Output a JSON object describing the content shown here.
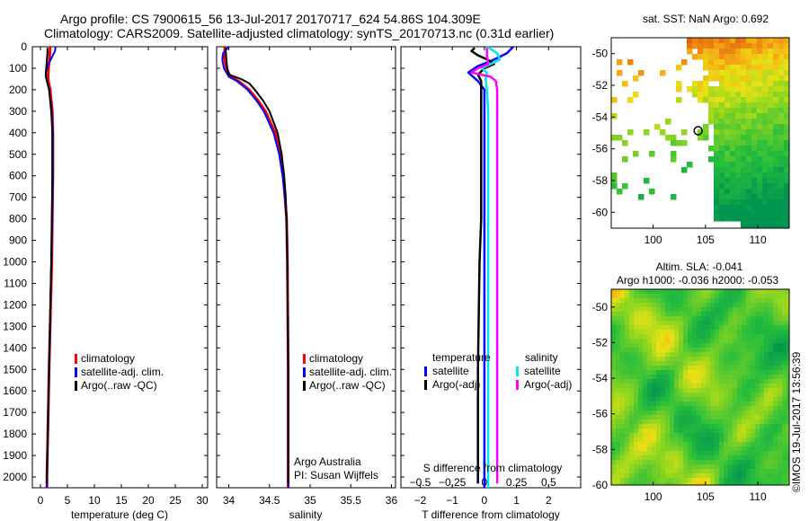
{
  "header": {
    "line1": "Argo profile: CS 7900615_56 13-Jul-2017 20170717_624 54.86S 104.309E",
    "line2": "Climatology: CARS2009. Satellite-adjusted climatology: synTS_20170713.nc (0.31d earlier)"
  },
  "depth_ticks": [
    0,
    100,
    200,
    300,
    400,
    500,
    600,
    700,
    800,
    900,
    1000,
    1100,
    1200,
    1300,
    1400,
    1500,
    1600,
    1700,
    1800,
    1900,
    2000
  ],
  "colors": {
    "climatology": "#ff0000",
    "satellite": "#0000ff",
    "argo": "#000000",
    "sal_satellite": "#00e5ee",
    "sal_argo": "#ff00ff",
    "land": "#000080"
  },
  "chart_data": [
    {
      "id": "temperature",
      "type": "line",
      "xlabel": "temperature (deg C)",
      "xlim": [
        -1.5,
        31
      ],
      "ylim": [
        2050,
        0
      ],
      "xticks": [
        0,
        5,
        10,
        15,
        20,
        25,
        30
      ],
      "xtick_labels": [
        "0",
        "5",
        "10",
        "15",
        "20",
        "25",
        "30"
      ],
      "legend": [
        "climatology",
        "satellite-adj. clim.",
        "Argo(..raw -QC)"
      ],
      "series": [
        {
          "name": "climatology",
          "depth": [
            0,
            50,
            100,
            150,
            200,
            300,
            400,
            600,
            800,
            1000,
            1500,
            2000,
            2050
          ],
          "values": [
            1.8,
            1.7,
            1.5,
            1.4,
            1.8,
            2.2,
            2.3,
            2.3,
            2.2,
            2.1,
            1.6,
            1.2,
            1.2
          ]
        },
        {
          "name": "satellite-adj. clim.",
          "depth": [
            0,
            20,
            40,
            60,
            80,
            100,
            120,
            150,
            200,
            300,
            400,
            600,
            800,
            1000,
            1500,
            2000,
            2050
          ],
          "values": [
            2.8,
            2.7,
            2.3,
            1.9,
            1.5,
            1.2,
            1.0,
            1.1,
            1.6,
            2.1,
            2.3,
            2.3,
            2.2,
            2.0,
            1.6,
            1.2,
            1.2
          ]
        },
        {
          "name": "Argo(..raw -QC)",
          "depth": [
            5,
            30,
            60,
            90,
            120,
            140,
            160,
            200,
            300,
            400,
            600,
            800,
            1000,
            1500,
            2000,
            2030
          ],
          "values": [
            1.3,
            1.3,
            1.2,
            1.1,
            1.0,
            1.0,
            1.2,
            1.6,
            2.0,
            2.2,
            2.2,
            2.1,
            2.0,
            1.6,
            1.2,
            1.2
          ]
        }
      ]
    },
    {
      "id": "salinity",
      "type": "line",
      "xlabel": "salinity",
      "xlim": [
        33.85,
        36.05
      ],
      "ylim": [
        2050,
        0
      ],
      "xticks": [
        34,
        34.5,
        35,
        35.5,
        36
      ],
      "xtick_labels": [
        "34",
        "34.5",
        "35",
        "35.5",
        "36"
      ],
      "legend": [
        "climatology",
        "satellite-adj. clim.",
        "Argo(..raw -QC)"
      ],
      "annotation": [
        "Argo Australia",
        "PI: Susan Wijffels"
      ],
      "series": [
        {
          "name": "climatology",
          "depth": [
            0,
            60,
            100,
            140,
            160,
            200,
            250,
            300,
            400,
            500,
            600,
            700,
            800,
            1000,
            1500,
            2000,
            2050
          ],
          "values": [
            33.95,
            33.95,
            33.97,
            34.02,
            34.12,
            34.25,
            34.36,
            34.45,
            34.57,
            34.63,
            34.67,
            34.69,
            34.71,
            34.72,
            34.73,
            34.73,
            34.73
          ]
        },
        {
          "name": "satellite-adj. clim.",
          "depth": [
            0,
            30,
            60,
            100,
            140,
            160,
            200,
            250,
            300,
            400,
            500,
            600,
            700,
            800,
            1000,
            1500,
            2000,
            2050
          ],
          "values": [
            34.0,
            33.93,
            33.92,
            33.94,
            34.0,
            34.1,
            34.23,
            34.34,
            34.43,
            34.55,
            34.62,
            34.66,
            34.69,
            34.71,
            34.72,
            34.73,
            34.73,
            34.73
          ]
        },
        {
          "name": "Argo(..raw -QC)",
          "depth": [
            5,
            60,
            100,
            130,
            150,
            170,
            200,
            250,
            300,
            400,
            500,
            600,
            700,
            800,
            1000,
            1500,
            2000,
            2030
          ],
          "values": [
            33.96,
            33.97,
            33.98,
            34.0,
            34.15,
            34.25,
            34.32,
            34.42,
            34.5,
            34.6,
            34.65,
            34.68,
            34.7,
            34.71,
            34.72,
            34.73,
            34.73,
            34.73
          ]
        }
      ]
    },
    {
      "id": "difference",
      "type": "line",
      "xlabel": "T difference from climatology",
      "top_label": "S difference from climatology",
      "xlim": [
        -2.6,
        3.0
      ],
      "s_xlim": [
        -0.65,
        0.75
      ],
      "ylim": [
        2050,
        0
      ],
      "xticks": [
        -2,
        -1,
        0,
        1,
        2
      ],
      "xtick_labels": [
        "−2",
        "−1",
        "0",
        "1",
        "2"
      ],
      "s_ticks": [
        -0.5,
        -0.25,
        0,
        0.25,
        0.5
      ],
      "s_tick_labels": [
        "−0.5",
        "−0.25",
        "0",
        "0.25",
        "0.5"
      ],
      "legend": {
        "temperature_title": "temperature",
        "salinity_title": "salinity",
        "entries": [
          "satellite",
          "Argo(-adj)",
          "satellite",
          "Argo(-adj)"
        ]
      },
      "series": [
        {
          "name": "temperature satellite",
          "depth": [
            0,
            30,
            60,
            90,
            120,
            160,
            200,
            300,
            500,
            800,
            1000,
            1500,
            2000,
            2050
          ],
          "values": [
            0.9,
            0.7,
            0.3,
            -0.2,
            -0.5,
            -0.2,
            0.0,
            0.0,
            0.0,
            0.0,
            0.0,
            0.0,
            0.0,
            0.0
          ]
        },
        {
          "name": "temperature Argo(-adj)",
          "depth": [
            5,
            20,
            40,
            60,
            80,
            100,
            130,
            160,
            200,
            300,
            500,
            800,
            1000,
            1500,
            2000,
            2030
          ],
          "values": [
            -0.3,
            -0.4,
            -0.2,
            0.1,
            0.3,
            0.0,
            -0.2,
            -0.1,
            -0.1,
            -0.1,
            -0.1,
            -0.1,
            -0.15,
            -0.2,
            -0.2,
            -0.2
          ]
        },
        {
          "name": "salinity satellite",
          "depth": [
            0,
            30,
            60,
            80,
            100,
            120,
            150,
            200,
            300,
            500,
            800,
            1000,
            1500,
            2000,
            2050
          ],
          "values": [
            0.02,
            0.1,
            0.12,
            0.05,
            -0.02,
            0.02,
            0.01,
            0.02,
            0.03,
            0.03,
            0.03,
            0.03,
            0.03,
            0.03,
            0.03
          ]
        },
        {
          "name": "salinity Argo(-adj)",
          "depth": [
            5,
            40,
            80,
            100,
            120,
            140,
            160,
            200,
            300,
            500,
            800,
            1000,
            1500,
            2000,
            2030
          ],
          "values": [
            0.02,
            0.02,
            0.03,
            -0.05,
            -0.1,
            0.05,
            0.09,
            0.1,
            0.1,
            0.1,
            0.1,
            0.1,
            0.1,
            0.1,
            0.1
          ]
        }
      ]
    },
    {
      "id": "sst-map",
      "type": "heatmap",
      "title": "sat. SST: NaN Argo: 0.692",
      "lon_range": [
        96,
        113
      ],
      "lat_range": [
        -61,
        -49
      ],
      "xticks": [
        100,
        105,
        110
      ],
      "xtick_labels": [
        "100",
        "105",
        "110"
      ],
      "yticks": [
        -50,
        -52,
        -54,
        -56,
        -58,
        -60
      ],
      "ytick_labels": [
        "-50",
        "-52",
        "-54",
        "-56",
        "-58",
        "-60"
      ],
      "argo_position": {
        "lon": 104.3,
        "lat": -54.86
      }
    },
    {
      "id": "sla-map",
      "type": "heatmap",
      "title": "Altim. SLA: -0.041",
      "subtitle": "Argo h1000: -0.036 h2000: -0.053",
      "lon_range": [
        96,
        113
      ],
      "lat_range": [
        -60,
        -49
      ],
      "xticks": [
        100,
        105,
        110
      ],
      "xtick_labels": [
        "100",
        "105",
        "110"
      ],
      "yticks": [
        -50,
        -52,
        -54,
        -56,
        -58,
        -60
      ],
      "ytick_labels": [
        "-50",
        "-52",
        "-54",
        "-56",
        "-58",
        "-60"
      ]
    }
  ],
  "credit": "©IMOS 19-Jul-2017 13:56:39"
}
